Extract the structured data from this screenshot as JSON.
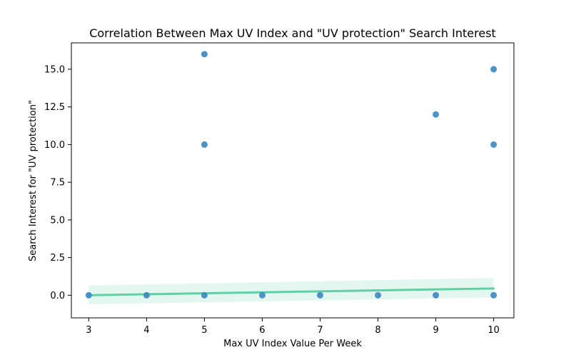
{
  "chart_data": {
    "type": "scatter",
    "title": "Correlation Between Max UV Index and \"UV protection\" Search Interest",
    "xlabel": "Max UV Index Value Per Week",
    "ylabel": "Search Interest for \"UV protection\"",
    "xlim": [
      2.7,
      10.35
    ],
    "ylim": [
      -1.5,
      16.75
    ],
    "xticks": [
      3,
      4,
      5,
      6,
      7,
      8,
      9,
      10
    ],
    "yticks": [
      0.0,
      2.5,
      5.0,
      7.5,
      10.0,
      12.5,
      15.0
    ],
    "ytick_labels": [
      "0.0",
      "2.5",
      "5.0",
      "7.5",
      "10.0",
      "12.5",
      "15.0"
    ],
    "grid": false,
    "points": [
      {
        "x": 3,
        "y": 0
      },
      {
        "x": 4,
        "y": 0
      },
      {
        "x": 5,
        "y": 0
      },
      {
        "x": 5,
        "y": 10
      },
      {
        "x": 5,
        "y": 16
      },
      {
        "x": 6,
        "y": 0
      },
      {
        "x": 7,
        "y": 0
      },
      {
        "x": 8,
        "y": 0
      },
      {
        "x": 9,
        "y": 0
      },
      {
        "x": 9,
        "y": 12
      },
      {
        "x": 10,
        "y": 0
      },
      {
        "x": 10,
        "y": 10
      },
      {
        "x": 10,
        "y": 15
      }
    ],
    "regression": {
      "x": [
        3,
        10
      ],
      "y": [
        0.0,
        0.45
      ],
      "ci_lower": [
        -0.6,
        -0.15
      ],
      "ci_upper": [
        0.65,
        1.15
      ]
    },
    "colors": {
      "points": "#3b87c0",
      "regression_line": "#5fcfa8",
      "confidence_band": "#d9f3ea",
      "axis": "#000000"
    }
  }
}
